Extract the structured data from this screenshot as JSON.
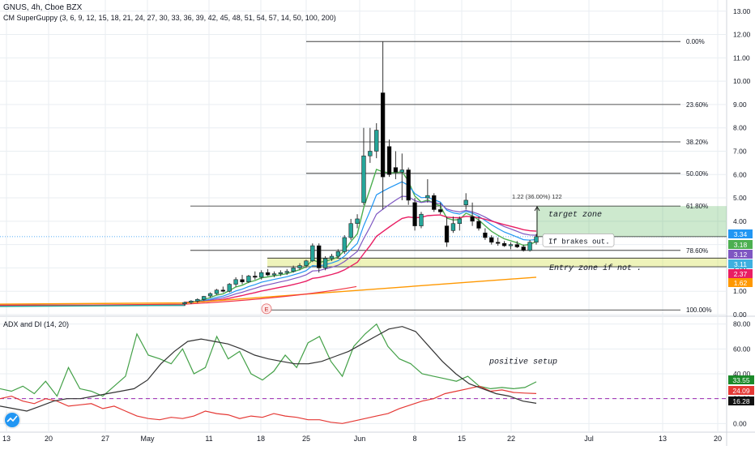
{
  "header": {
    "symbol_line": "GNUS, 4h, Cboe BZX",
    "indicator_line": "CM SuperGuppy (3, 6, 9, 12, 15, 18, 21, 24, 27, 30, 33, 36, 39, 42, 45, 48, 51, 54, 57, 14, 50, 100, 200)",
    "adx_title": "ADX and DI (14, 20)"
  },
  "colors": {
    "up": "#26a69a",
    "down": "#000000",
    "grid": "#e9eef2",
    "fib": "#222222",
    "green": "#4caf50",
    "red": "#f23645",
    "dark": "#333333"
  },
  "chart_data": [
    {
      "type": "candlestick",
      "title": "GNUS, 4h, Cboe BZX",
      "y_ticks": [
        "0.00",
        "1.00",
        "2.00",
        "3.00",
        "4.00",
        "5.00",
        "6.00",
        "7.00",
        "8.00",
        "9.00",
        "10.00",
        "11.00",
        "12.00",
        "13.00"
      ],
      "ylim": [
        0,
        13.2
      ],
      "x_ticks": [
        "13",
        "20",
        "27",
        "May",
        "11",
        "18",
        "25",
        "Jun",
        "8",
        "15",
        "22",
        "Jul",
        "13",
        "20"
      ],
      "fibonacci": [
        {
          "label": "0.00%",
          "value": 11.7
        },
        {
          "label": "23.60%",
          "value": 9.0
        },
        {
          "label": "38.20%",
          "value": 7.4
        },
        {
          "label": "50.00%",
          "value": 6.05
        },
        {
          "label": "61.80%",
          "value": 4.65
        },
        {
          "label": "78.60%",
          "value": 2.75
        },
        {
          "label": "100.00%",
          "value": 0.2
        }
      ],
      "candles": [
        {
          "o": 0.46,
          "h": 0.55,
          "l": 0.38,
          "c": 0.52
        },
        {
          "o": 0.52,
          "h": 0.62,
          "l": 0.45,
          "c": 0.58
        },
        {
          "o": 0.58,
          "h": 0.7,
          "l": 0.5,
          "c": 0.65
        },
        {
          "o": 0.65,
          "h": 0.8,
          "l": 0.6,
          "c": 0.78
        },
        {
          "o": 0.8,
          "h": 0.95,
          "l": 0.72,
          "c": 0.9
        },
        {
          "o": 0.9,
          "h": 1.1,
          "l": 0.85,
          "c": 1.05
        },
        {
          "o": 1.05,
          "h": 1.2,
          "l": 0.95,
          "c": 1.0
        },
        {
          "o": 1.0,
          "h": 1.35,
          "l": 0.95,
          "c": 1.3
        },
        {
          "o": 1.3,
          "h": 1.6,
          "l": 1.2,
          "c": 1.5
        },
        {
          "o": 1.5,
          "h": 1.7,
          "l": 1.3,
          "c": 1.4
        },
        {
          "o": 1.4,
          "h": 1.7,
          "l": 1.35,
          "c": 1.65
        },
        {
          "o": 1.65,
          "h": 1.85,
          "l": 1.5,
          "c": 1.6
        },
        {
          "o": 1.6,
          "h": 1.9,
          "l": 1.5,
          "c": 1.8
        },
        {
          "o": 1.8,
          "h": 1.95,
          "l": 1.65,
          "c": 1.7
        },
        {
          "o": 1.7,
          "h": 1.85,
          "l": 1.6,
          "c": 1.75
        },
        {
          "o": 1.75,
          "h": 1.9,
          "l": 1.65,
          "c": 1.8
        },
        {
          "o": 1.8,
          "h": 1.95,
          "l": 1.7,
          "c": 1.85
        },
        {
          "o": 1.85,
          "h": 2.1,
          "l": 1.8,
          "c": 2.0
        },
        {
          "o": 2.0,
          "h": 2.2,
          "l": 1.9,
          "c": 2.1
        },
        {
          "o": 2.1,
          "h": 2.35,
          "l": 2.0,
          "c": 2.3
        },
        {
          "o": 2.3,
          "h": 3.05,
          "l": 2.25,
          "c": 2.95
        },
        {
          "o": 2.95,
          "h": 3.05,
          "l": 1.8,
          "c": 2.0
        },
        {
          "o": 2.0,
          "h": 2.5,
          "l": 1.9,
          "c": 2.4
        },
        {
          "o": 2.4,
          "h": 2.6,
          "l": 2.3,
          "c": 2.5
        },
        {
          "o": 2.5,
          "h": 2.8,
          "l": 2.4,
          "c": 2.7
        },
        {
          "o": 2.7,
          "h": 3.4,
          "l": 2.6,
          "c": 3.3
        },
        {
          "o": 3.3,
          "h": 4.1,
          "l": 3.2,
          "c": 3.9
        },
        {
          "o": 3.9,
          "h": 4.3,
          "l": 3.7,
          "c": 4.1
        },
        {
          "o": 4.8,
          "h": 8.0,
          "l": 4.7,
          "c": 6.8
        },
        {
          "o": 6.8,
          "h": 8.0,
          "l": 6.5,
          "c": 7.0
        },
        {
          "o": 7.0,
          "h": 8.2,
          "l": 6.7,
          "c": 7.9
        },
        {
          "o": 9.5,
          "h": 11.7,
          "l": 4.5,
          "c": 5.9
        },
        {
          "o": 7.2,
          "h": 7.5,
          "l": 5.9,
          "c": 6.0
        },
        {
          "o": 6.3,
          "h": 7.0,
          "l": 5.8,
          "c": 6.1
        },
        {
          "o": 6.1,
          "h": 6.9,
          "l": 4.9,
          "c": 6.2
        },
        {
          "o": 6.2,
          "h": 6.3,
          "l": 4.7,
          "c": 4.9
        },
        {
          "o": 4.8,
          "h": 5.0,
          "l": 3.6,
          "c": 3.8
        },
        {
          "o": 3.8,
          "h": 4.4,
          "l": 3.7,
          "c": 4.3
        },
        {
          "o": 5.0,
          "h": 5.8,
          "l": 4.8,
          "c": 5.1
        },
        {
          "o": 5.1,
          "h": 5.2,
          "l": 4.4,
          "c": 4.5
        },
        {
          "o": 4.5,
          "h": 4.8,
          "l": 4.3,
          "c": 4.4
        },
        {
          "o": 3.8,
          "h": 4.2,
          "l": 2.9,
          "c": 3.1
        },
        {
          "o": 3.6,
          "h": 4.2,
          "l": 3.5,
          "c": 3.9
        },
        {
          "o": 3.9,
          "h": 4.2,
          "l": 3.6,
          "c": 4.1
        },
        {
          "o": 4.7,
          "h": 5.2,
          "l": 4.5,
          "c": 4.9
        },
        {
          "o": 4.2,
          "h": 4.8,
          "l": 3.8,
          "c": 4.0
        },
        {
          "o": 4.0,
          "h": 4.2,
          "l": 3.6,
          "c": 3.7
        },
        {
          "o": 3.5,
          "h": 3.7,
          "l": 3.2,
          "c": 3.3
        },
        {
          "o": 3.3,
          "h": 3.4,
          "l": 3.0,
          "c": 3.1
        },
        {
          "o": 3.1,
          "h": 3.3,
          "l": 2.95,
          "c": 3.05
        },
        {
          "o": 3.05,
          "h": 3.15,
          "l": 2.9,
          "c": 2.95
        },
        {
          "o": 2.95,
          "h": 3.1,
          "l": 2.8,
          "c": 3.0
        },
        {
          "o": 3.0,
          "h": 3.15,
          "l": 2.85,
          "c": 2.9
        },
        {
          "o": 2.9,
          "h": 3.0,
          "l": 2.7,
          "c": 2.75
        },
        {
          "o": 2.75,
          "h": 3.2,
          "l": 2.7,
          "c": 3.1
        },
        {
          "o": 3.1,
          "h": 3.45,
          "l": 3.0,
          "c": 3.34
        }
      ],
      "price_badges": [
        {
          "label": "3.34",
          "value": 3.34,
          "color": "#2196f3"
        },
        {
          "label": "3.18",
          "value": 3.18,
          "color": "#4caf50"
        },
        {
          "label": "3.12",
          "value": 3.12,
          "color": "#7e57c2"
        },
        {
          "label": "3.11",
          "value": 3.11,
          "color": "#3db0e0"
        },
        {
          "label": "2.37",
          "value": 2.37,
          "color": "#e91e63"
        },
        {
          "label": "1.62",
          "value": 1.62,
          "color": "#ff9800"
        }
      ],
      "annotations": {
        "measure": "1.22 (36.00%) 122",
        "target_zone": "target zone",
        "breakout": "If brakes out.",
        "entry_zone": "Entry zone if not .",
        "event_marker": "E"
      }
    },
    {
      "type": "line",
      "title": "ADX and DI (14, 20)",
      "y_ticks": [
        "0.00",
        "20.00",
        "40.00",
        "60.00",
        "80.00"
      ],
      "ylim": [
        -5,
        85
      ],
      "threshold": 20,
      "series": [
        {
          "role": "+DI",
          "color": "#43a047",
          "values": [
            28,
            26,
            30,
            24,
            34,
            22,
            45,
            28,
            26,
            22,
            30,
            38,
            72,
            55,
            52,
            48,
            60,
            40,
            45,
            70,
            52,
            58,
            40,
            35,
            42,
            55,
            45,
            65,
            70,
            50,
            38,
            62,
            72,
            80,
            62,
            52,
            48,
            40,
            38,
            36,
            34,
            38,
            30,
            28,
            29,
            28,
            29,
            33.55
          ]
        },
        {
          "role": "-DI",
          "color": "#e53935",
          "values": [
            20,
            22,
            18,
            16,
            20,
            18,
            14,
            15,
            16,
            12,
            14,
            10,
            6,
            4,
            3,
            5,
            4,
            6,
            10,
            8,
            7,
            4,
            6,
            5,
            8,
            6,
            5,
            3,
            3,
            1,
            0,
            2,
            4,
            6,
            8,
            12,
            15,
            18,
            20,
            24,
            26,
            28,
            30,
            26,
            27,
            25,
            24.5,
            24.09
          ]
        },
        {
          "role": "ADX",
          "color": "#333333",
          "values": [
            14,
            12,
            10,
            14,
            18,
            20,
            20,
            22,
            24,
            26,
            28,
            35,
            48,
            58,
            66,
            68,
            66,
            64,
            60,
            55,
            52,
            50,
            48,
            48,
            50,
            54,
            58,
            64,
            70,
            76,
            78,
            74,
            62,
            50,
            40,
            32,
            28,
            24,
            22,
            18,
            16.28
          ]
        }
      ],
      "value_badges": [
        {
          "label": "33.55",
          "color": "#1b8a2a"
        },
        {
          "label": "24.09",
          "color": "#e53935"
        },
        {
          "label": "16.28",
          "color": "#111111"
        }
      ],
      "annotation": "positive setup"
    }
  ]
}
